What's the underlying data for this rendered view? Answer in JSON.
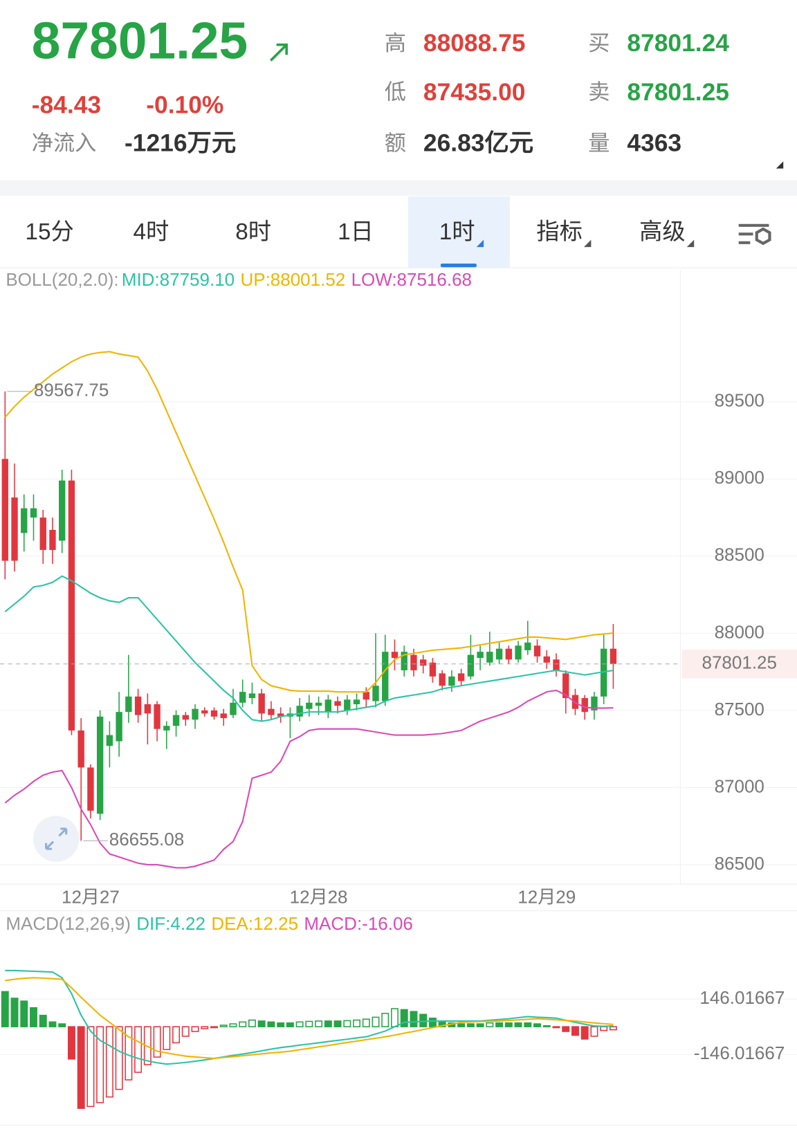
{
  "header": {
    "price": "87801.25",
    "change": "-84.43",
    "change_pct": "-0.10%",
    "inflow_label": "净流入",
    "inflow": "-1216万元",
    "high_label": "高",
    "high": "88088.75",
    "low_label": "低",
    "low": "87435.00",
    "amount_label": "额",
    "amount": "26.83亿元",
    "bid_label": "买",
    "bid": "87801.24",
    "ask_label": "卖",
    "ask": "87801.25",
    "volume_label": "量",
    "volume": "4363"
  },
  "tabs": [
    "15分",
    "4时",
    "8时",
    "1日",
    "1时",
    "指标",
    "高级"
  ],
  "selected_tab": 4,
  "chart_data": [
    {
      "type": "candlestick",
      "indicator": "BOLL(20,2.0):",
      "categories": [
        null,
        null,
        null,
        null,
        null,
        null,
        null,
        null,
        null,
        "12月27",
        null,
        null,
        null,
        null,
        null,
        null,
        null,
        null,
        null,
        null,
        null,
        null,
        null,
        null,
        null,
        null,
        null,
        null,
        null,
        null,
        null,
        null,
        null,
        "12月28",
        null,
        null,
        null,
        null,
        null,
        null,
        null,
        null,
        null,
        null,
        null,
        null,
        null,
        null,
        null,
        null,
        null,
        null,
        null,
        null,
        null,
        null,
        null,
        "12月29",
        null,
        null,
        null,
        null,
        null,
        null,
        null
      ],
      "open": [
        89130,
        88880,
        88650,
        88750,
        88750,
        88670,
        88600,
        88990,
        87370,
        87130,
        86830,
        87270,
        87300,
        87490,
        87590,
        87540,
        87540,
        87370,
        87400,
        87470,
        87440,
        87500,
        87500,
        87480,
        87470,
        87550,
        87580,
        87610,
        87510,
        87480,
        87460,
        87460,
        87510,
        87530,
        87490,
        87560,
        87500,
        87540,
        87620,
        87560,
        87560,
        87880,
        87760,
        87860,
        87830,
        87810,
        87740,
        87660,
        87740,
        87720,
        87840,
        87810,
        87830,
        87900,
        87830,
        87890,
        87920,
        87850,
        87830,
        87740,
        87600,
        87580,
        87500,
        87590,
        87900
      ],
      "high": [
        89567.75,
        89100,
        88900,
        88900,
        88800,
        88750,
        89060,
        89060,
        87450,
        87150,
        87500,
        87430,
        87620,
        87860,
        87640,
        87610,
        87560,
        87430,
        87500,
        87490,
        87540,
        87520,
        87520,
        87510,
        87640,
        87700,
        87680,
        87640,
        87560,
        87520,
        87520,
        87580,
        87600,
        87590,
        87600,
        87590,
        87600,
        87610,
        87650,
        88000,
        87990,
        87960,
        87920,
        87900,
        87860,
        87840,
        87760,
        87760,
        87770,
        87990,
        87920,
        88010,
        87940,
        87920,
        87950,
        88080,
        87960,
        87890,
        87870,
        87760,
        87640,
        87600,
        87620,
        87990,
        88060
      ],
      "low": [
        88350,
        88400,
        88530,
        88600,
        88450,
        88450,
        88520,
        87340,
        86655.08,
        86800,
        86790,
        87130,
        87200,
        87420,
        87420,
        87280,
        87300,
        87250,
        87330,
        87400,
        87380,
        87460,
        87440,
        87400,
        87450,
        87520,
        87540,
        87430,
        87440,
        87420,
        87320,
        87430,
        87460,
        87470,
        87450,
        87480,
        87470,
        87500,
        87520,
        87520,
        87530,
        87760,
        87720,
        87720,
        87740,
        87680,
        87630,
        87620,
        87660,
        87700,
        87760,
        87790,
        87800,
        87800,
        87810,
        87860,
        87810,
        87770,
        87720,
        87480,
        87470,
        87440,
        87440,
        87540,
        87640
      ],
      "close": [
        88470,
        88470,
        88810,
        88810,
        88540,
        88540,
        88990,
        87370,
        87130,
        86850,
        87460,
        87340,
        87490,
        87590,
        87470,
        87480,
        87380,
        87400,
        87470,
        87440,
        87510,
        87480,
        87460,
        87450,
        87550,
        87620,
        87610,
        87480,
        87470,
        87460,
        87480,
        87530,
        87550,
        87550,
        87570,
        87530,
        87570,
        87570,
        87570,
        87660,
        87880,
        87840,
        87880,
        87760,
        87790,
        87720,
        87660,
        87720,
        87690,
        87860,
        87880,
        87880,
        87900,
        87830,
        87920,
        87940,
        87850,
        87810,
        87760,
        87580,
        87510,
        87490,
        87590,
        87900,
        87801.25
      ],
      "up_color": "#27a446",
      "down_color": "#e2363f",
      "series": [
        {
          "name": "MID:87759.10",
          "color": "#2cc3a6",
          "values": [
            88140,
            88190,
            88240,
            88300,
            88310,
            88330,
            88370,
            88340,
            88300,
            88260,
            88230,
            88210,
            88200,
            88230,
            88230,
            88160,
            88090,
            88020,
            87950,
            87880,
            87810,
            87750,
            87690,
            87630,
            87580,
            87500,
            87440,
            87430,
            87440,
            87460,
            87470,
            87480,
            87490,
            87490,
            87490,
            87490,
            87500,
            87510,
            87520,
            87530,
            87560,
            87580,
            87590,
            87600,
            87610,
            87620,
            87640,
            87650,
            87660,
            87670,
            87680,
            87690,
            87700,
            87710,
            87720,
            87730,
            87740,
            87750,
            87760,
            87750,
            87740,
            87730,
            87740,
            87750,
            87759.1
          ]
        },
        {
          "name": "UP:88001.52",
          "color": "#f0b400",
          "values": [
            89400,
            89470,
            89530,
            89580,
            89630,
            89680,
            89720,
            89760,
            89790,
            89810,
            89820,
            89825,
            89810,
            89800,
            89790,
            89700,
            89580,
            89440,
            89300,
            89160,
            89020,
            88880,
            88740,
            88590,
            88430,
            88280,
            87790,
            87700,
            87660,
            87645,
            87630,
            87625,
            87625,
            87625,
            87625,
            87620,
            87620,
            87620,
            87620,
            87680,
            87760,
            87830,
            87860,
            87870,
            87880,
            87890,
            87895,
            87900,
            87905,
            87915,
            87925,
            87935,
            87945,
            87955,
            87965,
            87975,
            87975,
            87970,
            87965,
            87960,
            87970,
            87980,
            87990,
            87995,
            88001.52
          ]
        },
        {
          "name": "LOW:87516.68",
          "color": "#d84ab8",
          "values": [
            86900,
            86950,
            86990,
            87040,
            87080,
            87100,
            87110,
            87000,
            86860,
            86760,
            86640,
            86570,
            86550,
            86530,
            86510,
            86500,
            86500,
            86490,
            86480,
            86480,
            86490,
            86510,
            86530,
            86600,
            86650,
            86780,
            87060,
            87080,
            87100,
            87170,
            87300,
            87330,
            87370,
            87380,
            87380,
            87380,
            87380,
            87380,
            87370,
            87360,
            87350,
            87340,
            87340,
            87340,
            87340,
            87345,
            87350,
            87360,
            87370,
            87400,
            87430,
            87450,
            87470,
            87490,
            87520,
            87560,
            87590,
            87620,
            87630,
            87600,
            87550,
            87520,
            87515,
            87515,
            87516.68
          ]
        }
      ],
      "ylim": [
        86374,
        90354
      ],
      "yticks": [
        89500,
        89000,
        88500,
        88000,
        87500,
        87000,
        86500
      ],
      "grid": true
    },
    {
      "type": "macd",
      "title": "MACD(12,26,9)",
      "histogram_name": "MACD:-16.06",
      "histogram": [
        185,
        150,
        135,
        100,
        60,
        25,
        15,
        -170,
        -430,
        -420,
        -400,
        -370,
        -330,
        -280,
        -240,
        -200,
        -160,
        -120,
        -85,
        -50,
        -25,
        -10,
        -5,
        8,
        15,
        25,
        35,
        30,
        25,
        20,
        20,
        25,
        28,
        30,
        30,
        30,
        32,
        35,
        40,
        50,
        70,
        95,
        90,
        80,
        65,
        45,
        30,
        20,
        15,
        15,
        15,
        20,
        20,
        20,
        20,
        20,
        15,
        5,
        -5,
        -25,
        -45,
        -65,
        -50,
        -20,
        -16.06
      ],
      "up_color": "#27a446",
      "down_color": "#e2363f",
      "series": [
        {
          "name": "DIF:4.22",
          "color": "#2cc3a6",
          "values": [
            296,
            296,
            294,
            292,
            290,
            288,
            258,
            174,
            61,
            -23,
            -72,
            -100,
            -129,
            -150,
            -167,
            -180,
            -190,
            -197,
            -193,
            -188,
            -182,
            -175,
            -167,
            -159,
            -151,
            -144,
            -136,
            -127,
            -118,
            -110,
            -104,
            -97,
            -91,
            -85,
            -78,
            -72,
            -66,
            -59,
            -53,
            -38,
            -23,
            0,
            23,
            25,
            28,
            30,
            30,
            30,
            30,
            30,
            30,
            34,
            38,
            42,
            48,
            53,
            50,
            48,
            45,
            34,
            23,
            13,
            4,
            2,
            4.22
          ]
        },
        {
          "name": "DEA:12.25",
          "color": "#f0b400",
          "values": [
            243,
            250,
            255,
            258,
            256,
            253,
            250,
            205,
            155,
            108,
            61,
            23,
            -15,
            -53,
            -78,
            -104,
            -129,
            -138,
            -147,
            -155,
            -159,
            -163,
            -167,
            -162,
            -158,
            -153,
            -148,
            -143,
            -138,
            -134,
            -129,
            -121,
            -114,
            -106,
            -99,
            -91,
            -83,
            -76,
            -68,
            -61,
            -53,
            -44,
            -34,
            -25,
            -15,
            -5,
            5,
            14,
            23,
            25,
            27,
            29,
            30,
            33,
            36,
            39,
            42,
            39,
            36,
            33,
            30,
            25,
            20,
            16,
            12.25
          ]
        }
      ],
      "ylim": [
        -508,
        478
      ],
      "yticks": [
        146.01667,
        -146.01667
      ],
      "grid": true
    }
  ]
}
